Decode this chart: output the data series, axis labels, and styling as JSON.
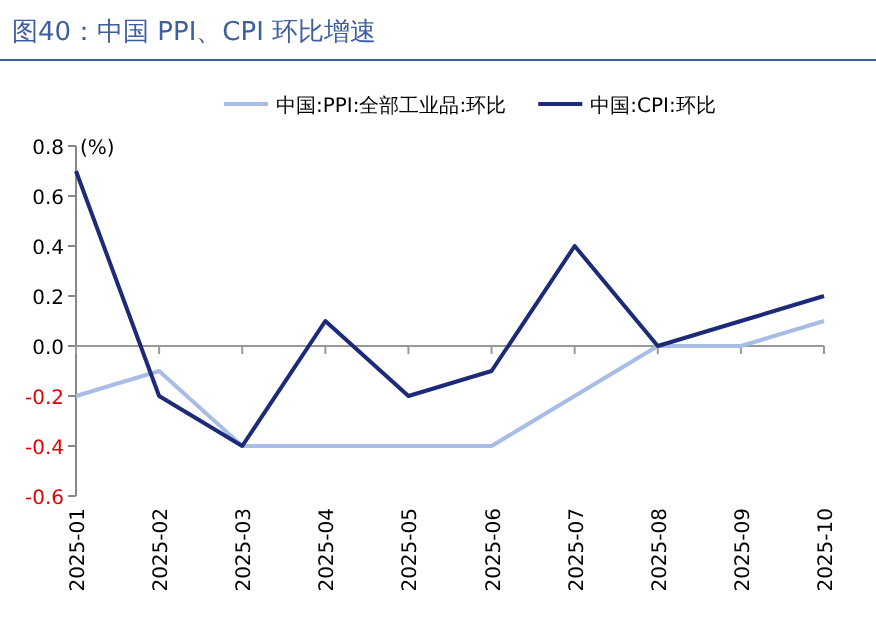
{
  "chart_data": {
    "type": "line",
    "title": "图40：中国 PPI、CPI 环比增速",
    "ylabel": "(%)",
    "categories": [
      "2025-01",
      "2025-02",
      "2025-03",
      "2025-04",
      "2025-05",
      "2025-06",
      "2025-07",
      "2025-08",
      "2025-09",
      "2025-10"
    ],
    "series": [
      {
        "name": "中国:PPI:全部工业品:环比",
        "color": "#a8bde6",
        "values": [
          -0.2,
          -0.1,
          -0.4,
          -0.4,
          -0.4,
          -0.4,
          -0.2,
          0.0,
          0.0,
          0.1
        ]
      },
      {
        "name": "中国:CPI:环比",
        "color": "#1c2a78",
        "values": [
          0.7,
          -0.2,
          -0.4,
          0.1,
          -0.2,
          -0.1,
          0.4,
          0.0,
          0.1,
          0.2
        ]
      }
    ],
    "ylim": [
      -0.6,
      0.8
    ],
    "yticks": [
      {
        "value": -0.6,
        "label": "-0.6"
      },
      {
        "value": -0.4,
        "label": "-0.4"
      },
      {
        "value": -0.2,
        "label": "-0.2"
      },
      {
        "value": 0,
        "label": "0.0"
      },
      {
        "value": 0.2,
        "label": "0.2"
      },
      {
        "value": 0.4,
        "label": "0.4"
      },
      {
        "value": 0.6,
        "label": "0.6"
      },
      {
        "value": 0.8,
        "label": "0.8"
      }
    ],
    "legend": "top",
    "marker": "none",
    "line_style": "solid"
  }
}
